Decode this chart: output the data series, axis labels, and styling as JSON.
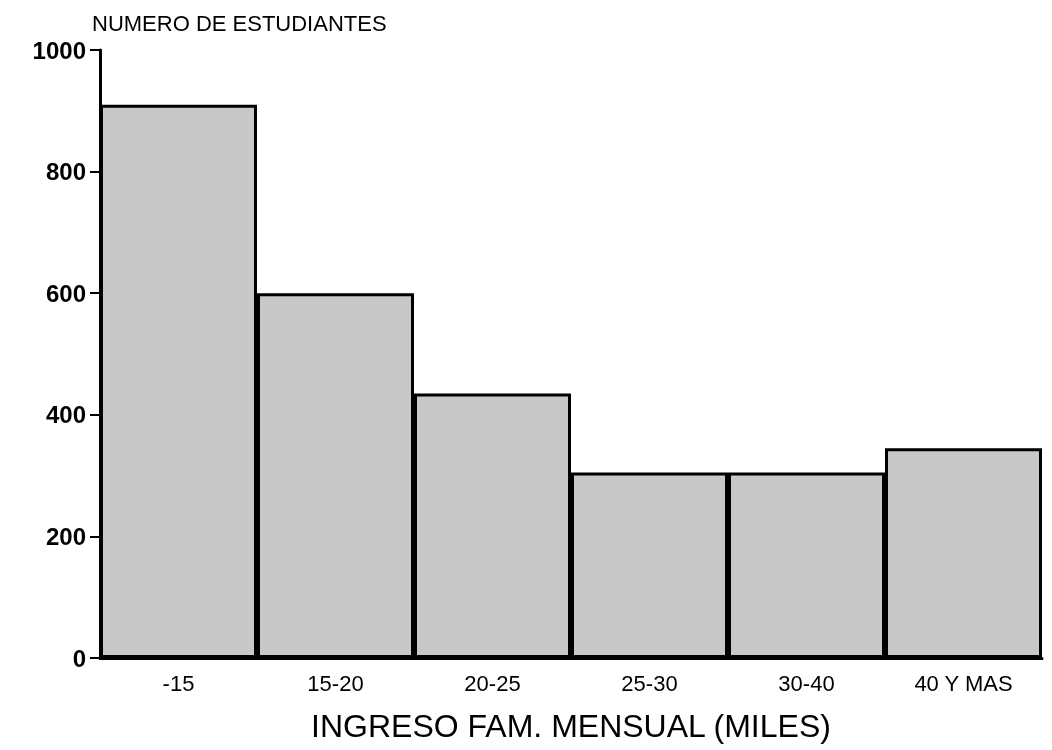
{
  "chart_data": {
    "type": "bar",
    "xlabel": "INGRESO FAM. MENSUAL (MILES)",
    "ylabel": "NUMERO DE ESTUDIANTES",
    "categories": [
      "-15",
      "15-20",
      "20-25",
      "25-30",
      "30-40",
      "40 Y MAS"
    ],
    "values": [
      910,
      600,
      435,
      305,
      305,
      345
    ],
    "color": "#c8c8c8",
    "ylim": [
      0,
      1000
    ],
    "yticks": [
      0,
      200,
      400,
      600,
      800,
      1000
    ],
    "grid": false
  }
}
